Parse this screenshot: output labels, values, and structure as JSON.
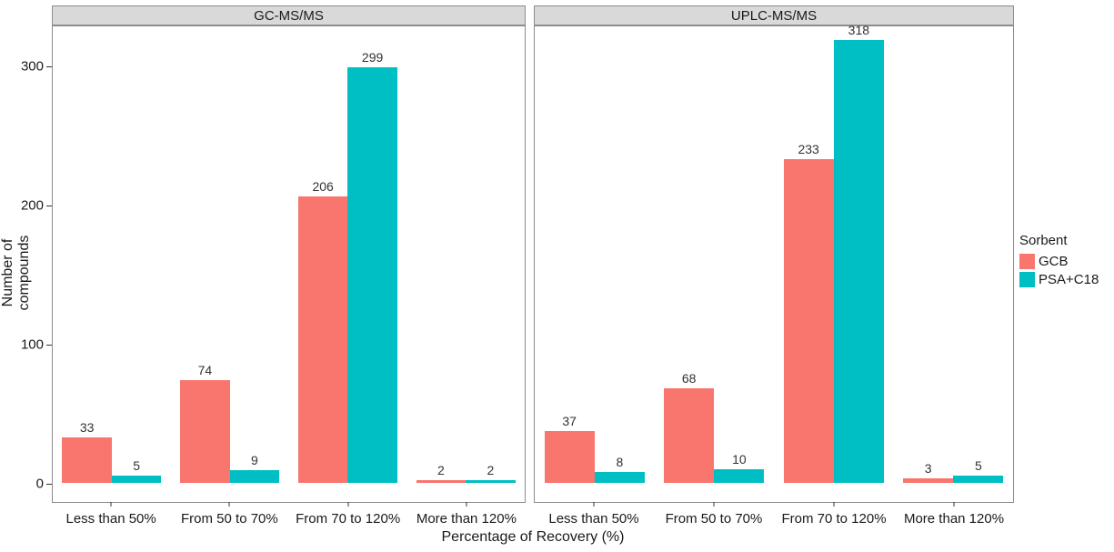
{
  "chart_data": {
    "type": "bar",
    "layout": "grouped-dodged, two facets side by side, shared y axis",
    "xlabel": "Percentage of Recovery (%)",
    "ylabel": "Number of compounds",
    "y_ticks": [
      0,
      100,
      200,
      300
    ],
    "ylim": [
      0,
      330
    ],
    "grid": false,
    "categories": [
      "Less than 50%",
      "From 50 to 70%",
      "From 70 to 120%",
      "More than 120%"
    ],
    "facets": [
      {
        "title": "GC-MS/MS",
        "series": [
          {
            "name": "GCB",
            "color": "#F8766D",
            "values": [
              33,
              74,
              206,
              2
            ]
          },
          {
            "name": "PSA+C18",
            "color": "#00BFC4",
            "values": [
              5,
              9,
              299,
              2
            ]
          }
        ]
      },
      {
        "title": "UPLC-MS/MS",
        "series": [
          {
            "name": "GCB",
            "color": "#F8766D",
            "values": [
              37,
              68,
              233,
              3
            ]
          },
          {
            "name": "PSA+C18",
            "color": "#00BFC4",
            "values": [
              8,
              10,
              318,
              5
            ]
          }
        ]
      }
    ],
    "legend": {
      "title": "Sorbent",
      "position": "right",
      "entries": [
        {
          "label": "GCB",
          "color": "#F8766D"
        },
        {
          "label": "PSA+C18",
          "color": "#00BFC4"
        }
      ]
    },
    "colors": {
      "strip_background": "#d9d9d9",
      "panel_border": "#8c8c8c",
      "text": "#1a1a1a"
    }
  }
}
